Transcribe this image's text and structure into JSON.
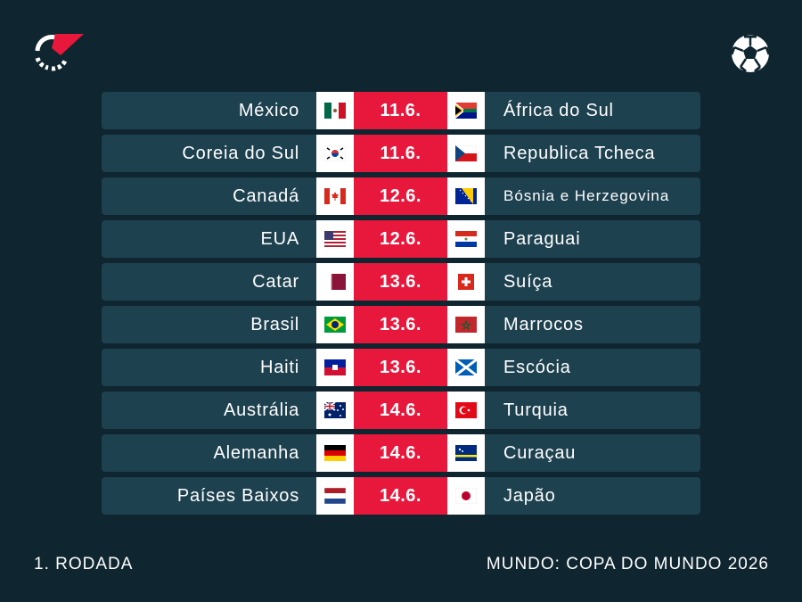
{
  "round_label": "1. RODADA",
  "competition_label": "MUNDO: COPA DO MUNDO 2026",
  "matches": [
    {
      "home": "México",
      "date": "11.6.",
      "away": "África do Sul"
    },
    {
      "home": "Coreia do Sul",
      "date": "11.6.",
      "away": "Republica Tcheca"
    },
    {
      "home": "Canadá",
      "date": "12.6.",
      "away": "Bósnia e Herzegovina"
    },
    {
      "home": "EUA",
      "date": "12.6.",
      "away": "Paraguai"
    },
    {
      "home": "Catar",
      "date": "13.6.",
      "away": "Suíça"
    },
    {
      "home": "Brasil",
      "date": "13.6.",
      "away": "Marrocos"
    },
    {
      "home": "Haiti",
      "date": "13.6.",
      "away": "Escócia"
    },
    {
      "home": "Austrália",
      "date": "14.6.",
      "away": "Turquia"
    },
    {
      "home": "Alemanha",
      "date": "14.6.",
      "away": "Curaçau"
    },
    {
      "home": "Países Baixos",
      "date": "14.6.",
      "away": "Japão"
    }
  ],
  "colors": {
    "background": "#0f2530",
    "row": "#1e4150",
    "date_accent": "#e8173c"
  },
  "icons": [
    "flashscore-logo-icon",
    "football-icon"
  ]
}
